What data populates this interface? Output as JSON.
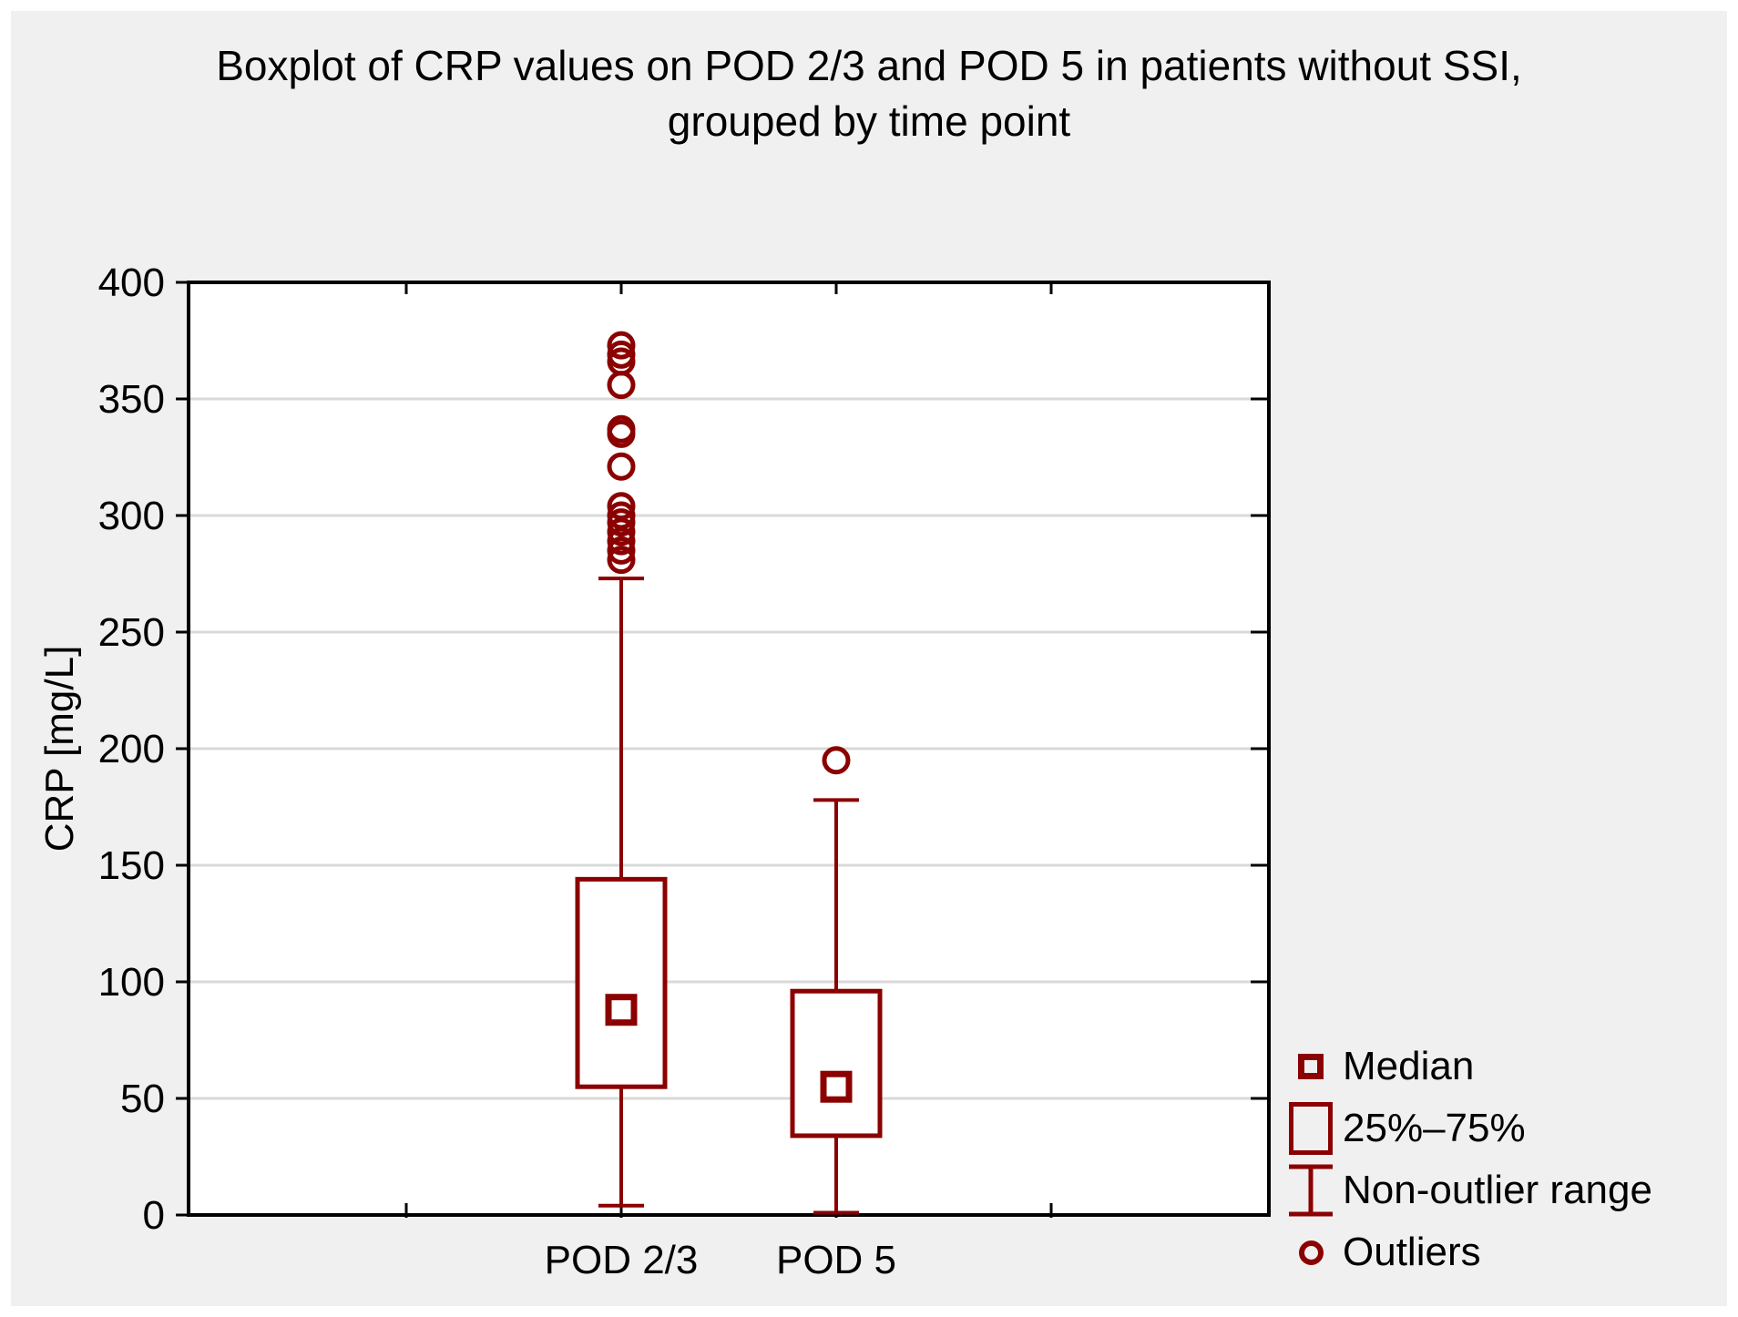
{
  "title": {
    "line1": "Boxplot of CRP values on POD 2/3 and POD 5 in patients without SSI,",
    "line2": "grouped by time point"
  },
  "colors": {
    "series": "#8b0000",
    "panel_background": "#f0f0f0",
    "plot_background": "#ffffff",
    "gridline": "#d9d9d9",
    "axis": "#000000",
    "text": "#000000"
  },
  "chart_data": {
    "type": "boxplot",
    "title": "Boxplot of CRP values on POD 2/3 and POD 5 in patients without SSI, grouped by time point",
    "xlabel": "",
    "ylabel": "CRP [mg/L]",
    "ylim": [
      0,
      400
    ],
    "yticks": [
      0,
      50,
      100,
      150,
      200,
      250,
      300,
      350,
      400
    ],
    "grid": "horizontal",
    "legend_position": "right-bottom",
    "categories": [
      "POD 2/3",
      "POD 5"
    ],
    "series": [
      {
        "category": "POD 2/3",
        "median": 88,
        "q1": 55,
        "q3": 144,
        "whisker_low": 4,
        "whisker_high": 273,
        "outliers": [
          373,
          369,
          366,
          356,
          337,
          335,
          321,
          304,
          300,
          297,
          293,
          289,
          285,
          281
        ]
      },
      {
        "category": "POD 5",
        "median": 55,
        "q1": 34,
        "q3": 96,
        "whisker_low": 1,
        "whisker_high": 178,
        "outliers": [
          195
        ]
      }
    ],
    "legend": [
      {
        "symbol": "median-square",
        "label": "Median"
      },
      {
        "symbol": "box",
        "label": "25%–75%"
      },
      {
        "symbol": "whisker",
        "label": "Non-outlier range"
      },
      {
        "symbol": "circle",
        "label": "Outliers"
      }
    ]
  }
}
